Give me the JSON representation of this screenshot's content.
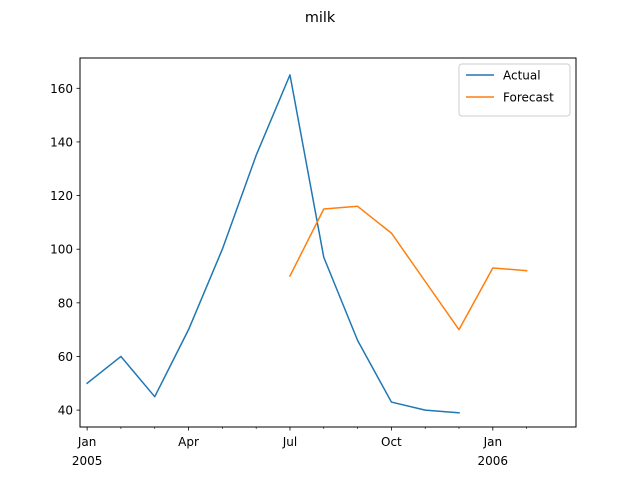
{
  "chart_data": {
    "type": "line",
    "title": "milk",
    "xlabel": "",
    "ylabel": "",
    "x_axis_type": "monthly dates",
    "x_ticks_major": [
      {
        "date": "2005-01",
        "label": "Jan",
        "sublabel": "2005"
      },
      {
        "date": "2005-04",
        "label": "Apr",
        "sublabel": ""
      },
      {
        "date": "2005-07",
        "label": "Jul",
        "sublabel": ""
      },
      {
        "date": "2005-10",
        "label": "Oct",
        "sublabel": ""
      },
      {
        "date": "2006-01",
        "label": "Jan",
        "sublabel": "2006"
      }
    ],
    "x_ticks_minor": [
      "2005-02",
      "2005-03",
      "2005-05",
      "2005-06",
      "2005-08",
      "2005-09",
      "2005-11",
      "2005-12",
      "2006-02"
    ],
    "xlim": [
      "2004-12-25",
      "2006-03-15"
    ],
    "y_ticks": [
      40,
      60,
      80,
      100,
      120,
      140,
      160
    ],
    "ylim": [
      33.7,
      171.3
    ],
    "grid": false,
    "legend_position": "top-right",
    "series": [
      {
        "name": "Actual",
        "color": "#1f77b4",
        "x": [
          "2005-01",
          "2005-02",
          "2005-03",
          "2005-04",
          "2005-05",
          "2005-06",
          "2005-07",
          "2005-08",
          "2005-09",
          "2005-10",
          "2005-11",
          "2005-12"
        ],
        "values": [
          50,
          60,
          45,
          70,
          100,
          135,
          165,
          97,
          66,
          43,
          40,
          39
        ]
      },
      {
        "name": "Forecast",
        "color": "#ff7f0e",
        "x": [
          "2005-07",
          "2005-08",
          "2005-09",
          "2005-10",
          "2005-11",
          "2005-12",
          "2006-01",
          "2006-02"
        ],
        "values": [
          90,
          115,
          116,
          106,
          88,
          70,
          93,
          92
        ]
      }
    ]
  }
}
